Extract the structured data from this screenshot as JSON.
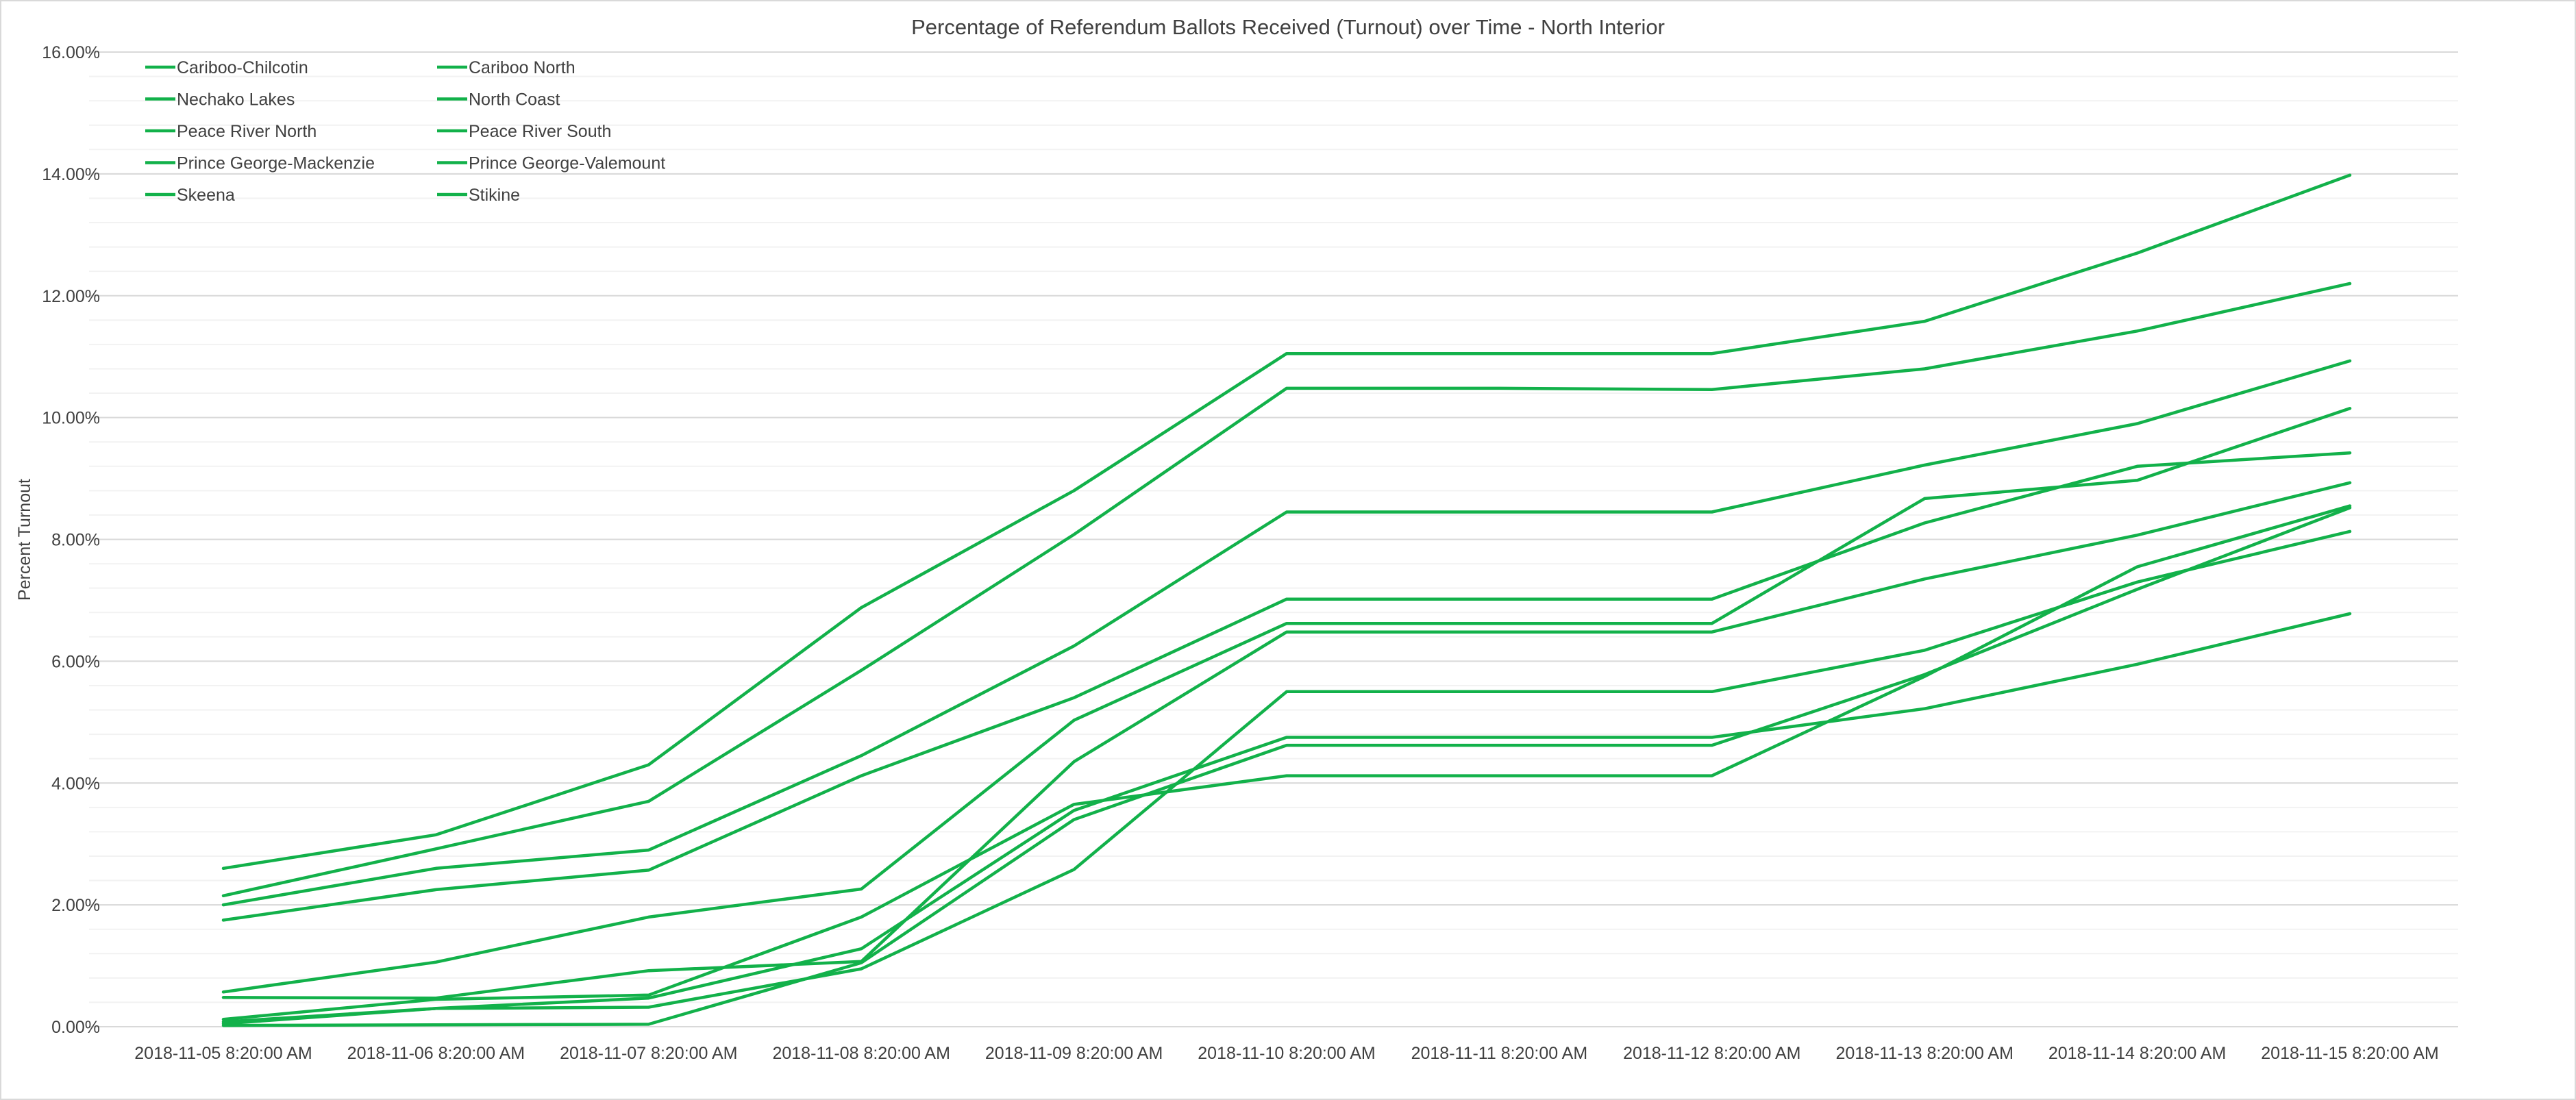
{
  "chart_data": {
    "type": "line",
    "title": "Percentage of Referendum Ballots Received (Turnout) over Time - North Interior",
    "xlabel": "",
    "ylabel": "Percent Turnout",
    "ylim": [
      0,
      16
    ],
    "y_tick_step": 2,
    "y_minor_step": 0.4,
    "y_tick_format": "percent_2dp",
    "grid": true,
    "legend_position": "top-left",
    "line_color": "#12b14a",
    "categories": [
      "2018-11-05 8:20:00 AM",
      "2018-11-06 8:20:00 AM",
      "2018-11-07 8:20:00 AM",
      "2018-11-08 8:20:00 AM",
      "2018-11-09 8:20:00 AM",
      "2018-11-10 8:20:00 AM",
      "2018-11-11 8:20:00 AM",
      "2018-11-12 8:20:00 AM",
      "2018-11-13 8:20:00 AM",
      "2018-11-14 8:20:00 AM",
      "2018-11-15 8:20:00 AM"
    ],
    "series": [
      {
        "name": "Cariboo-Chilcotin",
        "values": [
          2.6,
          3.15,
          4.3,
          6.88,
          8.8,
          11.05,
          11.05,
          11.05,
          11.58,
          12.7,
          13.98
        ]
      },
      {
        "name": "Cariboo North",
        "values": [
          2.15,
          2.92,
          3.7,
          5.85,
          8.08,
          10.48,
          10.48,
          10.46,
          10.8,
          11.42,
          12.2
        ]
      },
      {
        "name": "Nechako Lakes",
        "values": [
          2.0,
          2.6,
          2.9,
          4.45,
          6.25,
          8.45,
          8.45,
          8.45,
          9.22,
          9.9,
          10.93
        ]
      },
      {
        "name": "North Coast",
        "values": [
          1.75,
          2.25,
          2.57,
          4.12,
          5.4,
          7.02,
          7.02,
          7.02,
          8.27,
          9.2,
          9.42
        ]
      },
      {
        "name": "Peace River North",
        "values": [
          0.57,
          1.06,
          1.8,
          2.26,
          5.03,
          6.62,
          6.62,
          6.62,
          8.67,
          8.97,
          10.15
        ]
      },
      {
        "name": "Peace River South",
        "values": [
          0.48,
          0.47,
          0.92,
          1.07,
          4.35,
          6.48,
          6.48,
          6.48,
          7.35,
          8.07,
          8.93
        ]
      },
      {
        "name": "Prince George-Mackenzie",
        "values": [
          0.12,
          0.45,
          0.52,
          1.8,
          3.65,
          4.12,
          4.12,
          4.12,
          5.75,
          7.55,
          8.55
        ]
      },
      {
        "name": "Prince George-Valemount",
        "values": [
          0.08,
          0.3,
          0.47,
          1.28,
          3.55,
          4.75,
          4.75,
          4.75,
          5.22,
          5.95,
          6.78
        ]
      },
      {
        "name": "Skeena",
        "values": [
          0.05,
          0.3,
          0.32,
          0.95,
          2.58,
          5.5,
          5.5,
          5.5,
          6.18,
          7.3,
          8.13
        ]
      },
      {
        "name": "Stikine",
        "values": [
          0.02,
          0.03,
          0.04,
          1.05,
          3.4,
          4.62,
          4.62,
          4.62,
          5.78,
          7.18,
          8.52
        ]
      }
    ]
  }
}
